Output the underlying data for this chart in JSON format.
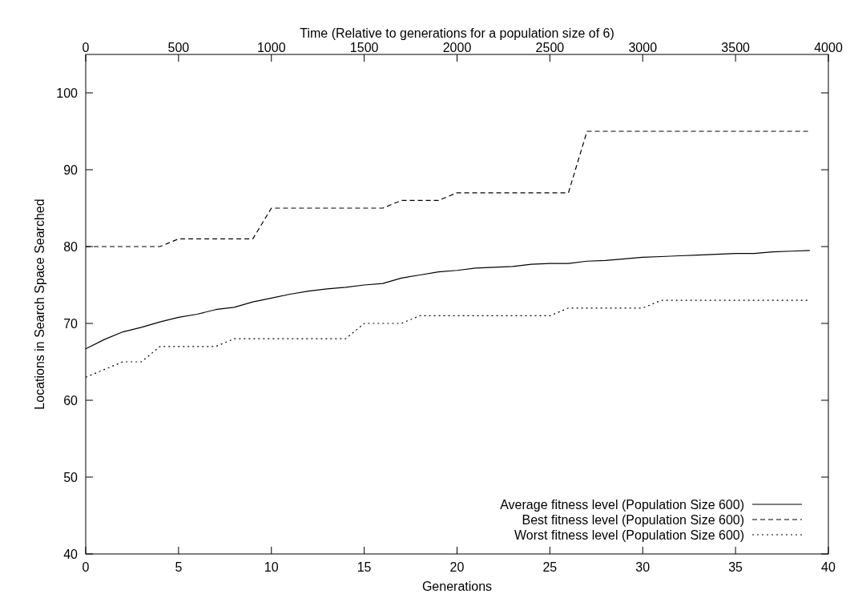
{
  "chart_data": {
    "type": "line",
    "xlabel": "Generations",
    "ylabel": "Locations in Search Space Searched",
    "x2label": "Time (Relative to generations for a population size of 6)",
    "x": [
      0,
      1,
      2,
      3,
      4,
      5,
      6,
      7,
      8,
      9,
      10,
      11,
      12,
      13,
      14,
      15,
      16,
      17,
      18,
      19,
      20,
      21,
      22,
      23,
      24,
      25,
      26,
      27,
      28,
      29,
      30,
      31,
      32,
      33,
      34,
      35,
      36,
      37,
      38,
      39
    ],
    "series": [
      {
        "name": "Average fitness level (Population Size 600)",
        "color": "#000000",
        "line_style": "solid",
        "values": [
          66.7,
          67.9,
          68.9,
          69.5,
          70.2,
          70.8,
          71.2,
          71.8,
          72.1,
          72.8,
          73.3,
          73.8,
          74.2,
          74.5,
          74.7,
          75.0,
          75.2,
          75.9,
          76.3,
          76.7,
          76.9,
          77.2,
          77.3,
          77.4,
          77.7,
          77.8,
          77.8,
          78.1,
          78.2,
          78.4,
          78.6,
          78.7,
          78.8,
          78.9,
          79.0,
          79.1,
          79.1,
          79.3,
          79.4,
          79.5
        ]
      },
      {
        "name": "Best fitness level (Population Size 600)",
        "color": "#000000",
        "line_style": "dashed",
        "values": [
          80,
          80,
          80,
          80,
          80,
          81,
          81,
          81,
          81,
          81,
          85,
          85,
          85,
          85,
          85,
          85,
          85,
          86,
          86,
          86,
          87,
          87,
          87,
          87,
          87,
          87,
          87,
          95,
          95,
          95,
          95,
          95,
          95,
          95,
          95,
          95,
          95,
          95,
          95,
          95
        ]
      },
      {
        "name": "Worst fitness level (Population Size 600)",
        "color": "#000000",
        "line_style": "dotted",
        "values": [
          63,
          64,
          65,
          65,
          67,
          67,
          67,
          67,
          68,
          68,
          68,
          68,
          68,
          68,
          68,
          70,
          70,
          70,
          71,
          71,
          71,
          71,
          71,
          71,
          71,
          71,
          72,
          72,
          72,
          72,
          72,
          73,
          73,
          73,
          73,
          73,
          73,
          73,
          73,
          73
        ]
      }
    ],
    "xlim": [
      0,
      40
    ],
    "xticks": [
      0,
      5,
      10,
      15,
      20,
      25,
      30,
      35,
      40
    ],
    "x2lim": [
      0,
      4000
    ],
    "x2ticks": [
      0,
      500,
      1000,
      1500,
      2000,
      2500,
      3000,
      3500,
      4000
    ],
    "ylim": [
      40,
      105
    ],
    "yticks": [
      40,
      50,
      60,
      70,
      80,
      90,
      100
    ],
    "legend": "bottom right",
    "grid": false
  }
}
